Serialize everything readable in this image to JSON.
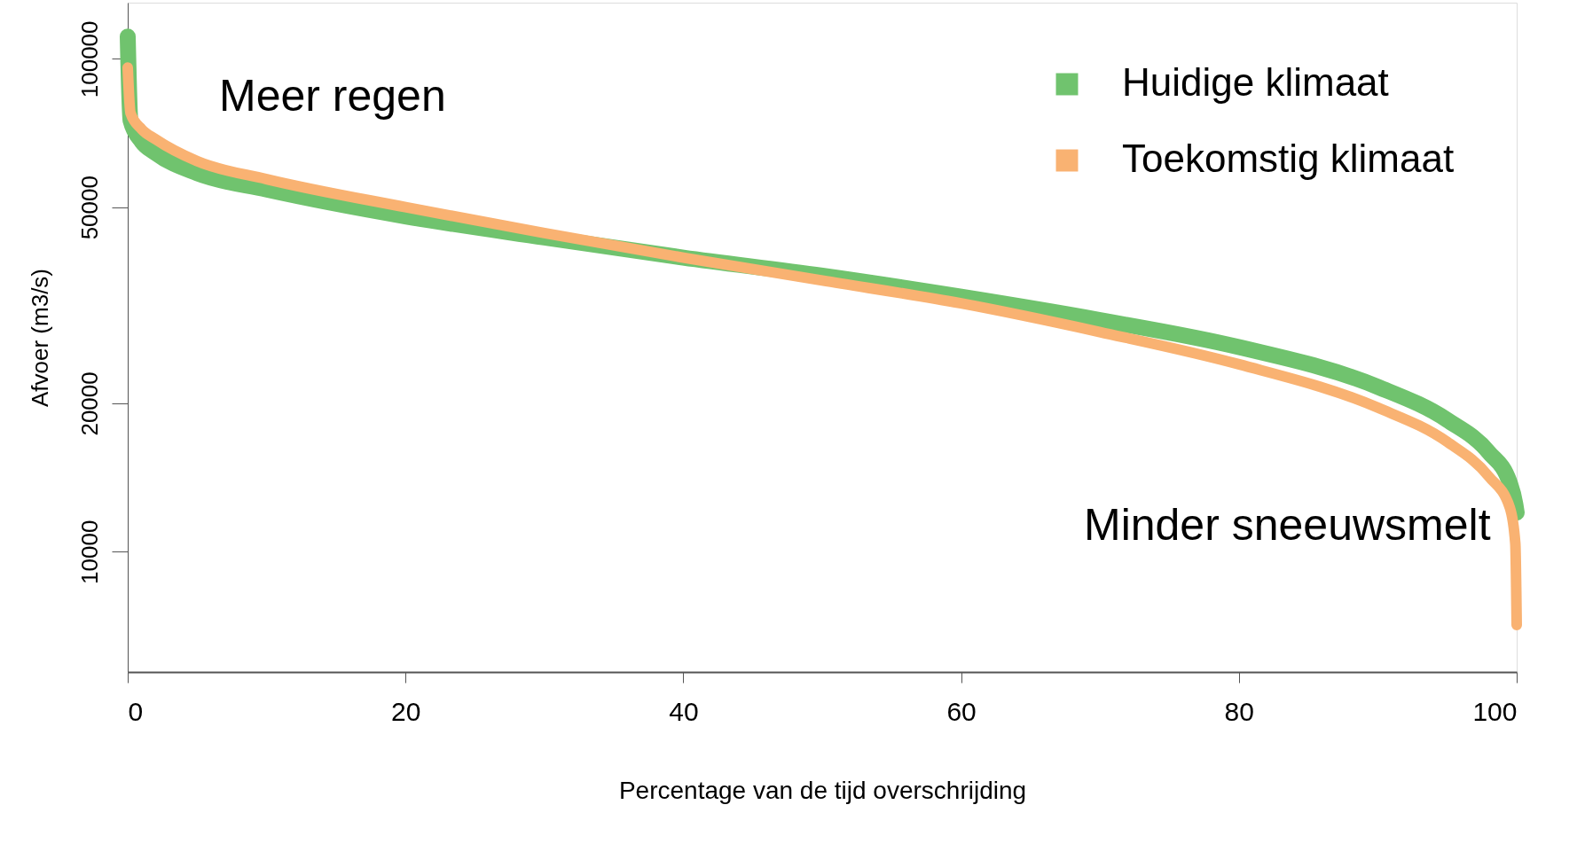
{
  "chart_data": {
    "type": "line",
    "xlabel": "Percentage van de tijd overschrijding",
    "ylabel": "Afvoer (m3/s)",
    "annotations": [
      "Meer regen",
      "Minder sneeuwsmelt"
    ],
    "x": [
      0,
      0.2,
      1,
      2,
      5,
      10,
      20,
      30,
      40,
      50,
      60,
      70,
      80,
      90,
      95,
      98,
      99.5,
      99.9,
      100
    ],
    "series": [
      {
        "name": "Huidige klimaat",
        "color": "#70c36e",
        "values": [
          111000,
          75000,
          68000,
          64400,
          58600,
          54300,
          47900,
          43400,
          39500,
          36300,
          32900,
          29500,
          26000,
          21600,
          18500,
          15900,
          13800,
          12500,
          12000
        ]
      },
      {
        "name": "Toekomstig klimaat",
        "color": "#f9b272",
        "values": [
          96000,
          77600,
          72000,
          68700,
          62000,
          57000,
          50000,
          44300,
          39500,
          35500,
          31900,
          27900,
          24000,
          19600,
          16700,
          14200,
          12300,
          10400,
          7100
        ]
      }
    ],
    "xlim": [
      0,
      100
    ],
    "ylim": [
      5700,
      130000
    ],
    "xticks": [
      0,
      20,
      40,
      60,
      80,
      100
    ],
    "yticks": [
      10000,
      20000,
      50000,
      100000
    ],
    "log": true,
    "grid": false,
    "legend": "top right",
    "marker": "none",
    "line_style": "solid"
  }
}
